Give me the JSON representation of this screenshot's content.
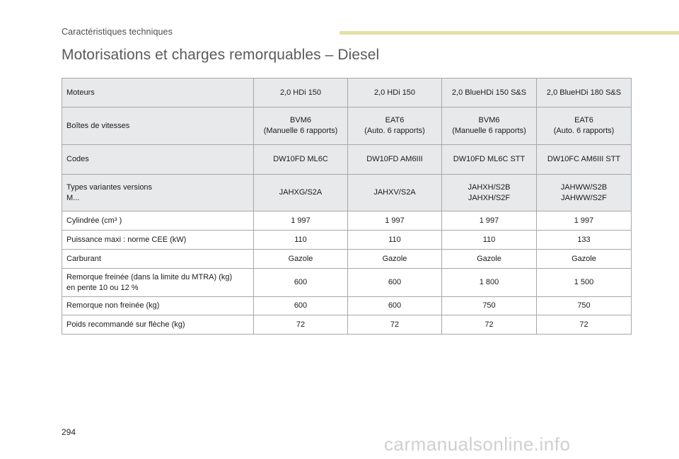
{
  "header": {
    "section": "Caractéristiques techniques",
    "title": "Motorisations et charges remorquables – Diesel"
  },
  "table": {
    "rows": [
      {
        "label": "Moteurs",
        "values": [
          "2,0 HDi 150",
          "2,0 HDi 150",
          "2,0 BlueHDi 150 S&S",
          "2,0 BlueHDi 180 S&S"
        ]
      },
      {
        "label": "Boîtes de vitesses",
        "values": [
          "BVM6\n(Manuelle 6 rapports)",
          "EAT6\n(Auto. 6 rapports)",
          "BVM6\n(Manuelle 6 rapports)",
          "EAT6\n(Auto. 6 rapports)"
        ]
      },
      {
        "label": "Codes",
        "values": [
          "DW10FD ML6C",
          "DW10FD AM6III",
          "DW10FD ML6C STT",
          "DW10FC AM6III STT"
        ]
      },
      {
        "label": "Types variantes versions\nM...",
        "values": [
          "JAHXG/S2A",
          "JAHXV/S2A",
          "JAHXH/S2B\nJAHXH/S2F",
          "JAHWW/S2B\nJAHWW/S2F"
        ]
      },
      {
        "label": "Cylindrée (cm³ )",
        "values": [
          "1 997",
          "1 997",
          "1 997",
          "1 997"
        ]
      },
      {
        "label": "Puissance maxi : norme CEE (kW)",
        "values": [
          "110",
          "110",
          "110",
          "133"
        ]
      },
      {
        "label": "Carburant",
        "values": [
          "Gazole",
          "Gazole",
          "Gazole",
          "Gazole"
        ]
      },
      {
        "label": "Remorque freinée (dans la limite du MTRA) (kg)\nen pente 10 ou 12 %",
        "values": [
          "600",
          "600",
          "1 800",
          "1 500"
        ]
      },
      {
        "label": "Remorque non freinée (kg)",
        "values": [
          "600",
          "600",
          "750",
          "750"
        ]
      },
      {
        "label": "Poids recommandé sur flèche (kg)",
        "values": [
          "72",
          "72",
          "72",
          "72"
        ]
      }
    ]
  },
  "footer": {
    "page_number": "294",
    "watermark": "carmanualsonline.info"
  },
  "colors": {
    "header_bar": "#e5e0a6",
    "shaded_row": "#e8e9eb",
    "border": "#a7a7a7"
  }
}
